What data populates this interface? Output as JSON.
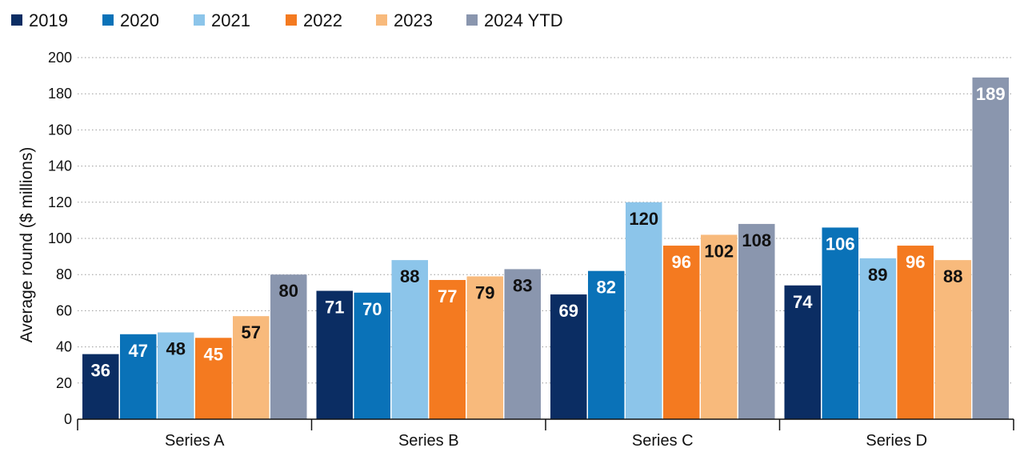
{
  "chart_data": {
    "type": "bar",
    "title": "",
    "xlabel": "",
    "ylabel": "Average round ($ millions)",
    "ylim": [
      0,
      200
    ],
    "yticks": [
      0,
      20,
      40,
      60,
      80,
      100,
      120,
      140,
      160,
      180,
      200
    ],
    "grid": true,
    "legend_position": "top-left",
    "categories": [
      "Series A",
      "Series B",
      "Series C",
      "Series D"
    ],
    "series": [
      {
        "name": "2019",
        "color": "#0B2D63",
        "label_color": "#ffffff",
        "values": [
          36,
          71,
          69,
          74
        ]
      },
      {
        "name": "2020",
        "color": "#0A72B8",
        "label_color": "#ffffff",
        "values": [
          47,
          70,
          82,
          106
        ]
      },
      {
        "name": "2021",
        "color": "#8CC5EA",
        "label_color": "#111111",
        "values": [
          48,
          88,
          120,
          89
        ]
      },
      {
        "name": "2022",
        "color": "#F47A20",
        "label_color": "#ffffff",
        "values": [
          45,
          77,
          96,
          96
        ]
      },
      {
        "name": "2023",
        "color": "#F8BA7C",
        "label_color": "#111111",
        "values": [
          57,
          79,
          102,
          88
        ]
      },
      {
        "name": "2024 YTD",
        "color": "#8A96AE",
        "label_color": "#111111",
        "values": [
          80,
          83,
          108,
          189
        ]
      }
    ],
    "label_color_overrides": [
      {
        "series": 5,
        "category": 3,
        "label_color": "#ffffff"
      }
    ]
  }
}
